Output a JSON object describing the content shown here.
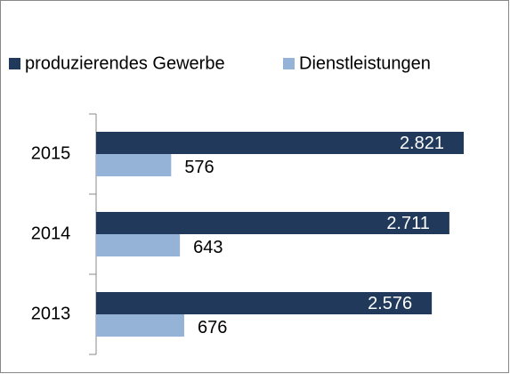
{
  "chart_data": {
    "type": "bar",
    "orientation": "horizontal",
    "categories": [
      "2015",
      "2014",
      "2013"
    ],
    "series": [
      {
        "name": "produzierendes Gewerbe",
        "color": "#213a5c",
        "values": [
          2821,
          2711,
          2576
        ],
        "value_labels": [
          "2.821",
          "2.711",
          "2.576"
        ]
      },
      {
        "name": "Dienstleistungen",
        "color": "#95b3d7",
        "values": [
          576,
          643,
          676
        ]
      }
    ],
    "legend": "top"
  }
}
